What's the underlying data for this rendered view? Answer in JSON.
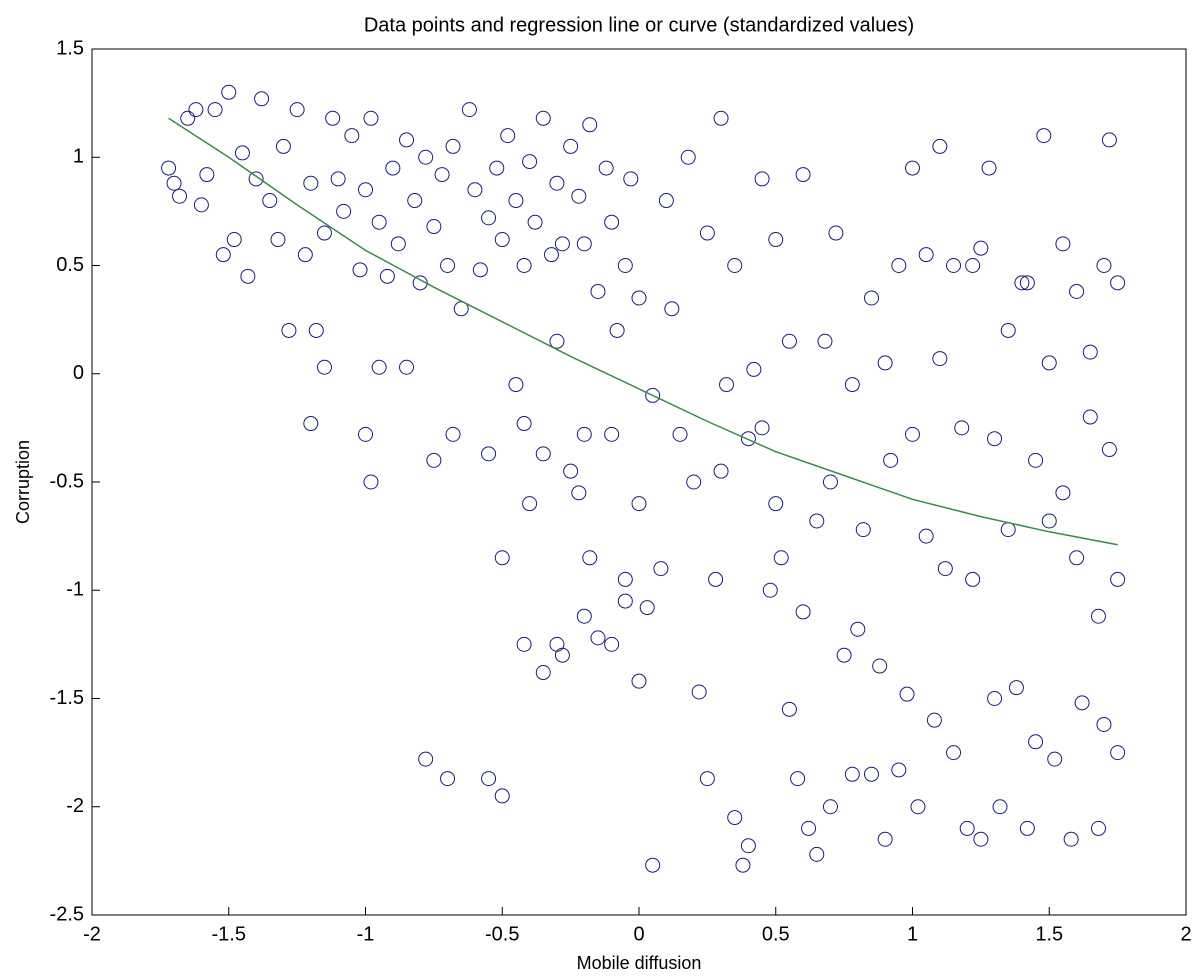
{
  "chart_data": {
    "type": "scatter",
    "title": "Data points and regression line or curve (standardized values)",
    "xlabel": "Mobile diffusion",
    "ylabel": "Corruption",
    "xlim": [
      -2,
      2
    ],
    "ylim": [
      -2.5,
      1.5
    ],
    "xticks": [
      -2,
      -1.5,
      -1,
      -0.5,
      0,
      0.5,
      1,
      1.5,
      2
    ],
    "yticks": [
      -2.5,
      -2,
      -1.5,
      -1,
      -0.5,
      0,
      0.5,
      1,
      1.5
    ],
    "series": [
      {
        "type": "scatter",
        "color": "#1c1c78",
        "x": [
          -1.72,
          -1.7,
          -1.68,
          -1.65,
          -1.62,
          -1.6,
          -1.58,
          -1.55,
          -1.52,
          -1.5,
          -1.48,
          -1.45,
          -1.43,
          -1.4,
          -1.38,
          -1.35,
          -1.32,
          -1.3,
          -1.28,
          -1.25,
          -1.22,
          -1.2,
          -1.18,
          -1.15,
          -1.12,
          -1.1,
          -1.08,
          -1.05,
          -1.02,
          -1.0,
          -0.98,
          -0.95,
          -0.92,
          -0.9,
          -0.88,
          -0.85,
          -0.82,
          -0.8,
          -0.78,
          -0.75,
          -0.72,
          -0.7,
          -0.68,
          -0.65,
          -0.62,
          -0.6,
          -0.58,
          -0.55,
          -0.52,
          -0.5,
          -0.48,
          -0.45,
          -0.42,
          -0.4,
          -0.38,
          -0.35,
          -0.32,
          -0.3,
          -0.28,
          -0.25,
          -0.22,
          -0.2,
          -0.18,
          -0.15,
          -0.12,
          -0.1,
          -0.08,
          -0.05,
          -0.03,
          0.0,
          -1.2,
          -1.15,
          -1.0,
          -0.98,
          -0.95,
          -0.85,
          -0.75,
          -0.68,
          -0.55,
          -0.5,
          -0.45,
          -0.42,
          -0.4,
          -0.35,
          -0.3,
          -0.25,
          -0.22,
          -0.2,
          -0.18,
          -0.1,
          -0.05,
          0.0,
          -0.78,
          -0.7,
          -0.55,
          -0.5,
          -0.42,
          -0.35,
          -0.3,
          -0.28,
          -0.2,
          -0.15,
          -0.1,
          -0.05,
          0.0,
          0.03,
          0.05,
          0.08,
          0.05,
          0.1,
          0.12,
          0.15,
          0.18,
          0.2,
          0.22,
          0.25,
          0.25,
          0.28,
          0.3,
          0.3,
          0.32,
          0.35,
          0.35,
          0.38,
          0.4,
          0.4,
          0.42,
          0.45,
          0.45,
          0.48,
          0.5,
          0.5,
          0.52,
          0.55,
          0.55,
          0.58,
          0.6,
          0.6,
          0.62,
          0.65,
          0.65,
          0.68,
          0.7,
          0.7,
          0.72,
          0.75,
          0.78,
          0.78,
          0.8,
          0.82,
          0.85,
          0.85,
          0.88,
          0.9,
          0.9,
          0.92,
          0.95,
          0.95,
          0.98,
          1.0,
          1.0,
          1.02,
          1.05,
          1.05,
          1.08,
          1.1,
          1.1,
          1.12,
          1.15,
          1.15,
          1.18,
          1.2,
          1.22,
          1.22,
          1.25,
          1.28,
          1.3,
          1.3,
          1.32,
          1.35,
          1.35,
          1.38,
          1.4,
          1.42,
          1.45,
          1.45,
          1.48,
          1.5,
          1.5,
          1.52,
          1.55,
          1.55,
          1.58,
          1.6,
          1.6,
          1.62,
          1.65,
          1.65,
          1.68,
          1.7,
          1.7,
          1.72,
          1.72,
          1.75,
          1.75,
          1.75,
          1.68,
          1.42,
          1.25
        ],
        "y": [
          0.95,
          0.88,
          0.82,
          1.18,
          1.22,
          0.78,
          0.92,
          1.22,
          0.55,
          1.3,
          0.62,
          1.02,
          0.45,
          0.9,
          1.27,
          0.8,
          0.62,
          1.05,
          0.2,
          1.22,
          0.55,
          0.88,
          0.2,
          0.65,
          1.18,
          0.9,
          0.75,
          1.1,
          0.48,
          0.85,
          1.18,
          0.7,
          0.45,
          0.95,
          0.6,
          1.08,
          0.8,
          0.42,
          1.0,
          0.68,
          0.92,
          0.5,
          1.05,
          0.3,
          1.22,
          0.85,
          0.48,
          0.72,
          0.95,
          0.62,
          1.1,
          0.8,
          0.5,
          0.98,
          0.7,
          1.18,
          0.55,
          0.88,
          0.6,
          1.05,
          0.82,
          0.6,
          1.15,
          0.38,
          0.95,
          0.7,
          0.2,
          0.5,
          0.9,
          0.35,
          -0.23,
          0.03,
          -0.28,
          -0.5,
          0.03,
          0.03,
          -0.4,
          -0.28,
          -0.37,
          -0.85,
          -0.05,
          -0.23,
          -0.6,
          -0.37,
          0.15,
          -0.45,
          -0.55,
          -0.28,
          -0.85,
          -0.28,
          -0.95,
          -0.6,
          -1.78,
          -1.87,
          -1.87,
          -1.95,
          -1.25,
          -1.38,
          -1.25,
          -1.3,
          -1.12,
          -1.22,
          -1.25,
          -1.05,
          -1.42,
          -1.08,
          -2.27,
          -0.9,
          -0.1,
          0.8,
          0.3,
          -0.28,
          1.0,
          -0.5,
          -1.47,
          0.65,
          -1.87,
          -0.95,
          -0.45,
          1.18,
          -0.05,
          0.5,
          -2.05,
          -2.27,
          -0.3,
          -2.18,
          0.02,
          -0.25,
          0.9,
          -1.0,
          -0.6,
          0.62,
          -0.85,
          -1.55,
          0.15,
          -1.87,
          0.92,
          -1.1,
          -2.1,
          -0.68,
          -2.22,
          0.15,
          -0.5,
          -2.0,
          0.65,
          -1.3,
          -0.05,
          -1.85,
          -1.18,
          -0.72,
          0.35,
          -1.85,
          -1.35,
          0.05,
          -2.15,
          -0.4,
          -1.83,
          0.5,
          -1.48,
          -0.28,
          0.95,
          -2.0,
          -0.75,
          0.55,
          -1.6,
          0.07,
          1.05,
          -0.9,
          -1.75,
          0.5,
          -0.25,
          -2.1,
          -0.95,
          0.5,
          -2.15,
          0.95,
          -0.3,
          -1.5,
          -2.0,
          0.2,
          -0.72,
          -1.45,
          0.42,
          -2.1,
          -0.4,
          -1.7,
          1.1,
          0.05,
          -0.68,
          -1.78,
          -0.55,
          0.6,
          -2.15,
          0.38,
          -0.85,
          -1.52,
          0.1,
          -0.2,
          -1.12,
          0.5,
          -1.62,
          1.08,
          -0.35,
          -0.95,
          0.42,
          -1.75,
          -2.1,
          0.42,
          0.58
        ]
      },
      {
        "type": "line",
        "color": "#3a8a4a",
        "x": [
          -1.72,
          -1.5,
          -1.25,
          -1,
          -0.75,
          -0.5,
          -0.25,
          0,
          0.25,
          0.5,
          0.75,
          1,
          1.25,
          1.5,
          1.75
        ],
        "y": [
          1.18,
          1.0,
          0.78,
          0.57,
          0.4,
          0.24,
          0.08,
          -0.07,
          -0.22,
          -0.36,
          -0.47,
          -0.58,
          -0.66,
          -0.73,
          -0.79
        ]
      }
    ]
  }
}
